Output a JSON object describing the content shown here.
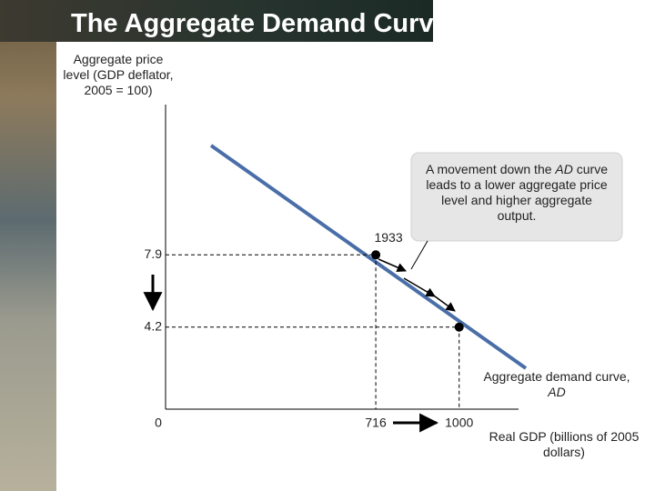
{
  "title": "The Aggregate Demand Curve",
  "chart_data": {
    "type": "line",
    "y_label": "Aggregate price level (GDP deflator, 2005 = 100)",
    "x_label": "Real GDP (billions of 2005 dollars)",
    "x": [
      716,
      1000
    ],
    "values": [
      7.9,
      4.2
    ],
    "labels": [
      "1933",
      null
    ],
    "color": "#4a6ea8",
    "curve_label": [
      "Aggregate demand curve, ",
      "AD"
    ],
    "annotation": [
      "A movement down the ",
      "AD",
      " curve leads to a lower aggregate price level and higher aggregate output."
    ],
    "xlim": [
      0,
      1100
    ],
    "ylim": [
      0,
      15.5
    ],
    "xticks": [
      0,
      716,
      1000
    ],
    "yticks": [
      4.2,
      7.9
    ]
  }
}
